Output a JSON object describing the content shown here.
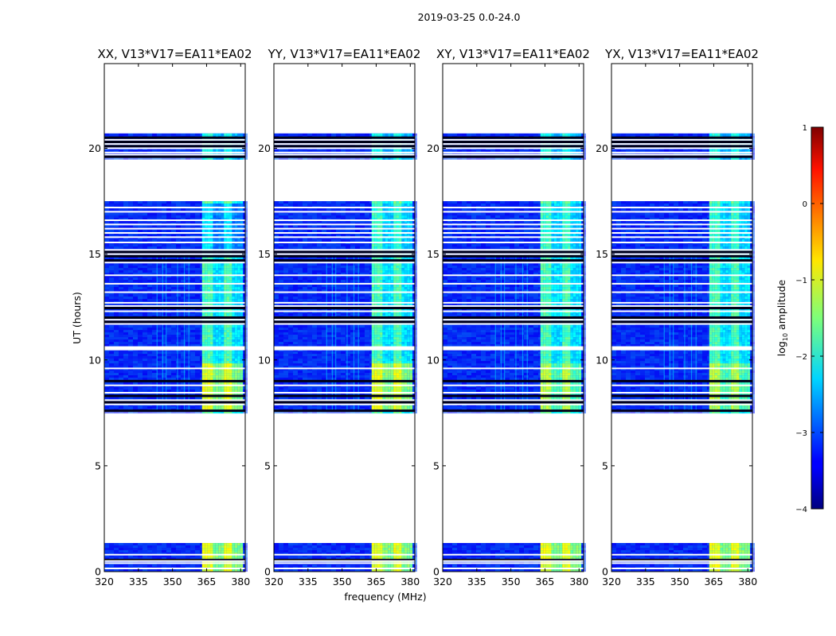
{
  "figure": {
    "suptitle": "2019-03-25 0.0-24.0",
    "xlabel": "frequency (MHz)",
    "ylabel": "UT (hours)"
  },
  "chart_data": {
    "type": "heatmap",
    "title": "2019-03-25 0.0-24.0",
    "xlabel": "frequency (MHz)",
    "ylabel": "UT (hours)",
    "xlim": [
      320,
      382
    ],
    "ylim": [
      0,
      24
    ],
    "x_ticks": [
      320,
      335,
      350,
      365,
      380
    ],
    "y_ticks": [
      0,
      5,
      10,
      15,
      20
    ],
    "panels": [
      {
        "title": "XX, V13*V17=EA11*EA02",
        "polarization": "XX"
      },
      {
        "title": "YY, V13*V17=EA11*EA02",
        "polarization": "YY"
      },
      {
        "title": "XY, V13*V17=EA11*EA02",
        "polarization": "XY"
      },
      {
        "title": "YX, V13*V17=EA11*EA02",
        "polarization": "YX"
      }
    ],
    "data_segments_ut": [
      [
        0.0,
        1.35
      ],
      [
        7.55,
        17.5
      ],
      [
        19.55,
        20.7
      ]
    ],
    "rfi_band_mhz": [
      363,
      380
    ],
    "colorbar": {
      "label": "log10 amplitude",
      "label_base": "log",
      "label_sub": "10",
      "label_rest": " amplitude",
      "range": [
        -4,
        1
      ],
      "ticks": [
        1,
        0,
        -1,
        -2,
        -3,
        -4
      ],
      "tick_labels": [
        "1",
        "0",
        "−1",
        "−2",
        "−3",
        "−4"
      ],
      "colormap": "jet"
    }
  }
}
